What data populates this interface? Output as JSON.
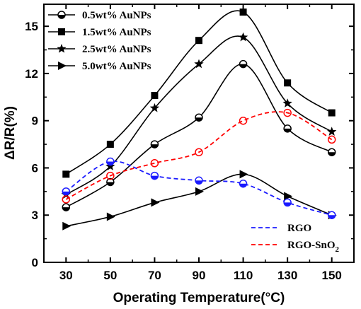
{
  "chart_data": {
    "type": "line",
    "xlabel": "Operating Temperature(°C)",
    "ylabel": "ΔR/R(%)",
    "x": [
      30,
      50,
      70,
      90,
      110,
      130,
      150
    ],
    "xlim": [
      20,
      160
    ],
    "ylim": [
      0,
      16.4
    ],
    "xticks": [
      "30",
      "50",
      "70",
      "90",
      "110",
      "130",
      "150"
    ],
    "yticks": [
      "0",
      "3",
      "6",
      "9",
      "12",
      "15"
    ],
    "series": [
      {
        "name": "0.5wt% AuNPs",
        "marker": "half-circle",
        "color": "#000000",
        "dashed": false,
        "values": [
          3.5,
          5.1,
          7.5,
          9.2,
          12.6,
          8.5,
          7.0
        ]
      },
      {
        "name": "1.5wt% AuNPs",
        "marker": "square",
        "color": "#000000",
        "dashed": false,
        "values": [
          5.6,
          7.5,
          10.6,
          14.1,
          15.9,
          11.4,
          9.5
        ]
      },
      {
        "name": "2.5wt% AuNPs",
        "marker": "star",
        "color": "#000000",
        "dashed": false,
        "values": [
          4.3,
          6.1,
          9.8,
          12.6,
          14.3,
          10.1,
          8.3
        ]
      },
      {
        "name": "5.0wt% AuNPs",
        "marker": "triangle-right",
        "color": "#000000",
        "dashed": false,
        "values": [
          2.3,
          2.9,
          3.8,
          4.5,
          5.6,
          4.2,
          3.0
        ]
      },
      {
        "name": "RGO",
        "marker": "half-circle-blue",
        "color": "#1a1aff",
        "dashed": true,
        "values": [
          4.5,
          6.4,
          5.5,
          5.2,
          5.0,
          3.8,
          3.0
        ]
      },
      {
        "name": "RGO-SnO2",
        "display_name": "RGO-SnO",
        "subscript": "2",
        "marker": "open-circle",
        "color": "#ff0000",
        "dashed": true,
        "values": [
          4.0,
          5.5,
          6.3,
          7.0,
          9.0,
          9.5,
          7.8
        ]
      }
    ],
    "legend_primary_position": "top-left",
    "legend_secondary_position": "bottom-right",
    "grid": false
  }
}
